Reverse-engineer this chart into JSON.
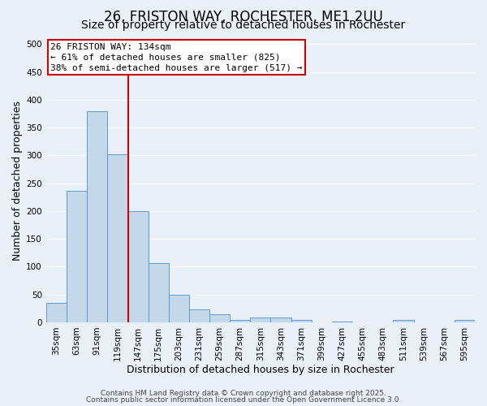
{
  "title": "26, FRISTON WAY, ROCHESTER, ME1 2UU",
  "subtitle": "Size of property relative to detached houses in Rochester",
  "xlabel": "Distribution of detached houses by size in Rochester",
  "ylabel": "Number of detached properties",
  "bin_labels": [
    "35sqm",
    "63sqm",
    "91sqm",
    "119sqm",
    "147sqm",
    "175sqm",
    "203sqm",
    "231sqm",
    "259sqm",
    "287sqm",
    "315sqm",
    "343sqm",
    "371sqm",
    "399sqm",
    "427sqm",
    "455sqm",
    "483sqm",
    "511sqm",
    "539sqm",
    "567sqm",
    "595sqm"
  ],
  "bar_heights": [
    35,
    237,
    380,
    302,
    200,
    106,
    50,
    23,
    14,
    4,
    9,
    9,
    4,
    0,
    2,
    0,
    0,
    4,
    0,
    0,
    4
  ],
  "bar_color": "#c5d8ea",
  "bar_edge_color": "#5b9bd5",
  "red_line_color": "#cc0000",
  "annotation_text": "26 FRISTON WAY: 134sqm\n← 61% of detached houses are smaller (825)\n38% of semi-detached houses are larger (517) →",
  "annotation_box_color": "#ffffff",
  "annotation_box_edge": "#cc0000",
  "ylim": [
    0,
    510
  ],
  "yticks": [
    0,
    50,
    100,
    150,
    200,
    250,
    300,
    350,
    400,
    450,
    500
  ],
  "background_color": "#eaf0f8",
  "grid_color": "#ffffff",
  "footer_line1": "Contains HM Land Registry data © Crown copyright and database right 2025.",
  "footer_line2": "Contains public sector information licensed under the Open Government Licence 3.0.",
  "title_fontsize": 12,
  "subtitle_fontsize": 10,
  "axis_label_fontsize": 9,
  "tick_fontsize": 7.5,
  "annotation_fontsize": 8,
  "footer_fontsize": 6.5
}
